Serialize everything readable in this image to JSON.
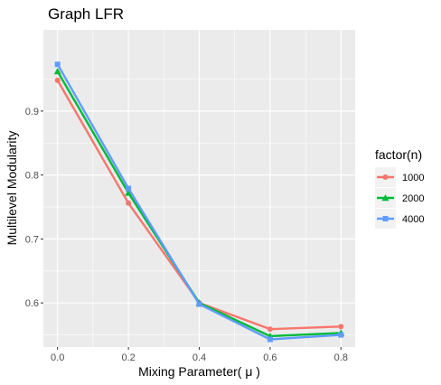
{
  "chart_data": {
    "type": "line",
    "title": "Graph LFR",
    "xlabel": "Mixing Parameter( μ )",
    "ylabel": "Multilevel Modularity",
    "x": [
      0.0,
      0.2,
      0.4,
      0.6,
      0.8
    ],
    "x_ticks": [
      "0.0",
      "0.2",
      "0.4",
      "0.6",
      "0.8"
    ],
    "y_ticks": [
      "0.6",
      "0.7",
      "0.8",
      "0.9"
    ],
    "xlim": [
      -0.04,
      0.84
    ],
    "ylim": [
      0.531,
      1.027
    ],
    "grid": true,
    "legend": {
      "title": "factor(n)",
      "position": "right"
    },
    "series": [
      {
        "name": "1000",
        "color": "#F8766D",
        "marker": "circle",
        "values": [
          0.948,
          0.756,
          0.6,
          0.559,
          0.563
        ]
      },
      {
        "name": "2000",
        "color": "#00BA38",
        "marker": "triangle",
        "values": [
          0.962,
          0.772,
          0.6,
          0.548,
          0.553
        ]
      },
      {
        "name": "4000",
        "color": "#619CFF",
        "marker": "square",
        "values": [
          0.973,
          0.779,
          0.598,
          0.543,
          0.55
        ]
      }
    ]
  }
}
